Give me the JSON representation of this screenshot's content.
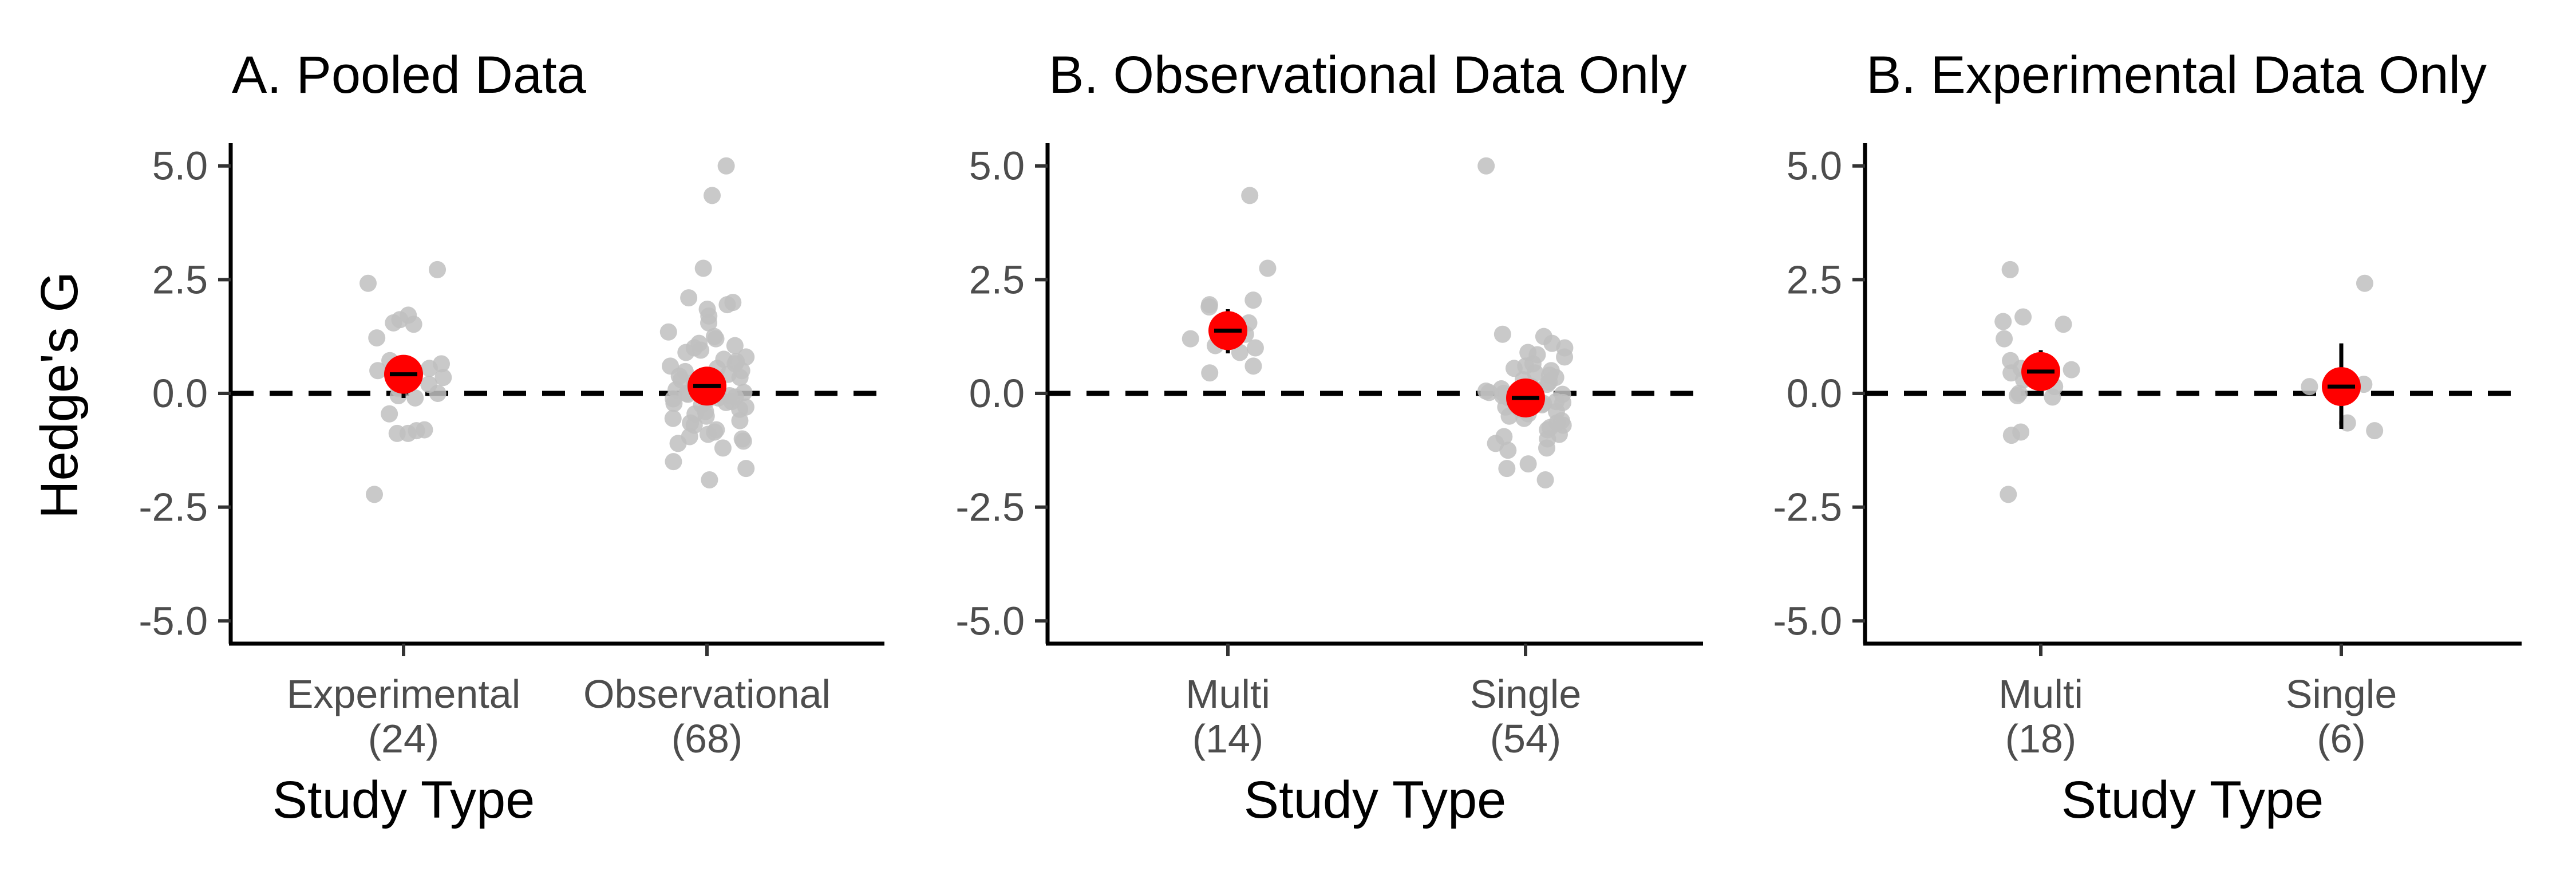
{
  "chart_data": [
    {
      "type": "scatter",
      "title": "A. Pooled Data",
      "xlabel": "Study Type",
      "ylabel": "Hedge's G",
      "ylim": [
        -5.5,
        5.5
      ],
      "yticks": [
        "5.0",
        "2.5",
        "0.0",
        "-2.5",
        "-5.0"
      ],
      "reference_line": 0,
      "categories": [
        {
          "name": "Experimental",
          "n": "(24)",
          "mean": 0.42,
          "ci": [
            -0.1,
            0.82
          ],
          "points": [
            2.72,
            2.42,
            1.72,
            1.55,
            1.62,
            1.52,
            1.22,
            0.72,
            0.62,
            0.65,
            0.55,
            0.5,
            0.35,
            0.2,
            0.1,
            0.0,
            -0.05,
            -0.1,
            -0.45,
            -0.8,
            -0.88,
            -0.82,
            -0.88,
            -2.22
          ]
        },
        {
          "name": "Observational",
          "n": "(68)",
          "mean": 0.16,
          "ci": [
            -0.12,
            0.44
          ],
          "points": [
            5.0,
            4.35,
            2.75,
            2.1,
            2.0,
            1.95,
            1.85,
            1.7,
            1.55,
            1.35,
            1.25,
            1.2,
            1.1,
            1.05,
            1.0,
            0.95,
            0.9,
            0.8,
            0.75,
            0.7,
            0.65,
            0.6,
            0.55,
            0.5,
            0.48,
            0.42,
            0.38,
            0.35,
            0.3,
            0.25,
            0.22,
            0.18,
            0.15,
            0.12,
            0.08,
            0.05,
            0.02,
            0.0,
            -0.02,
            -0.05,
            -0.08,
            -0.1,
            -0.12,
            -0.15,
            -0.18,
            -0.2,
            -0.22,
            -0.25,
            -0.3,
            -0.35,
            -0.4,
            -0.45,
            -0.5,
            -0.55,
            -0.6,
            -0.65,
            -0.7,
            -0.8,
            -0.85,
            -0.9,
            -0.95,
            -1.0,
            -1.05,
            -1.1,
            -1.2,
            -1.5,
            -1.65,
            -1.9
          ]
        }
      ]
    },
    {
      "type": "scatter",
      "title": "B. Observational Data Only",
      "xlabel": "Study Type",
      "ylabel": "",
      "ylim": [
        -5.5,
        5.5
      ],
      "yticks": [
        "5.0",
        "2.5",
        "0.0",
        "-2.5",
        "-5.0"
      ],
      "reference_line": 0,
      "categories": [
        {
          "name": "Multi",
          "n": "(14)",
          "mean": 1.38,
          "ci": [
            0.88,
            1.85
          ],
          "points": [
            4.35,
            2.75,
            2.05,
            1.95,
            1.9,
            1.55,
            1.45,
            1.3,
            1.2,
            1.05,
            1.0,
            0.9,
            0.6,
            0.45
          ]
        },
        {
          "name": "Single",
          "n": "(54)",
          "mean": -0.1,
          "ci": [
            -0.32,
            0.12
          ],
          "points": [
            5.0,
            1.3,
            1.25,
            1.1,
            1.0,
            0.9,
            0.85,
            0.8,
            0.65,
            0.6,
            0.55,
            0.5,
            0.45,
            0.4,
            0.35,
            0.3,
            0.25,
            0.2,
            0.15,
            0.1,
            0.08,
            0.05,
            0.02,
            0.0,
            -0.02,
            -0.05,
            -0.08,
            -0.1,
            -0.12,
            -0.15,
            -0.18,
            -0.2,
            -0.22,
            -0.25,
            -0.3,
            -0.35,
            -0.4,
            -0.45,
            -0.5,
            -0.55,
            -0.6,
            -0.65,
            -0.7,
            -0.75,
            -0.8,
            -0.9,
            -0.95,
            -1.0,
            -1.1,
            -1.2,
            -1.25,
            -1.55,
            -1.65,
            -1.9
          ]
        }
      ]
    },
    {
      "type": "scatter",
      "title": "B. Experimental Data Only",
      "xlabel": "Study Type",
      "ylabel": "",
      "ylim": [
        -5.5,
        5.5
      ],
      "yticks": [
        "5.0",
        "2.5",
        "0.0",
        "-2.5",
        "-5.0"
      ],
      "reference_line": 0,
      "categories": [
        {
          "name": "Multi",
          "n": "(18)",
          "mean": 0.48,
          "ci": [
            0.0,
            0.95
          ],
          "points": [
            2.72,
            1.68,
            1.58,
            1.52,
            1.2,
            0.72,
            0.62,
            0.55,
            0.52,
            0.45,
            0.3,
            0.15,
            0.0,
            -0.05,
            -0.08,
            -0.85,
            -0.92,
            -2.22
          ]
        },
        {
          "name": "Single",
          "n": "(6)",
          "mean": 0.15,
          "ci": [
            -0.78,
            1.1
          ],
          "points": [
            2.42,
            0.2,
            0.15,
            0.05,
            -0.65,
            -0.82
          ]
        }
      ]
    }
  ]
}
